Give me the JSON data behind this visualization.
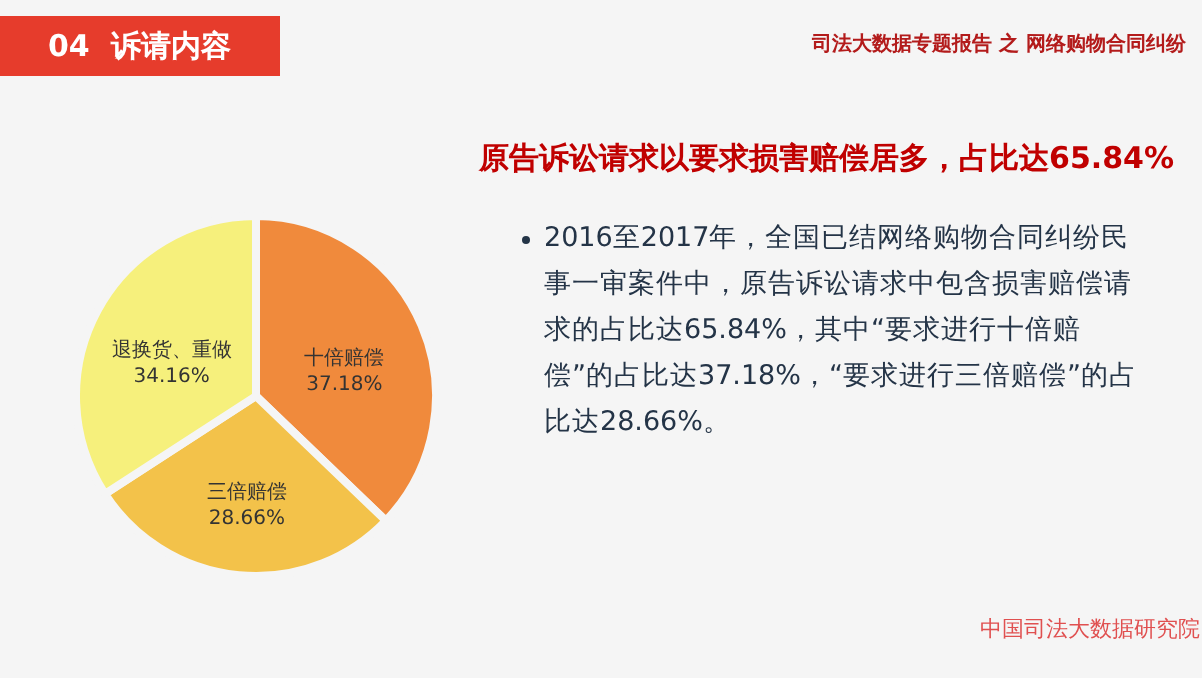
{
  "chart_data": {
    "type": "pie",
    "title": "原告诉讼请求以要求损害赔偿居多，占比达65.84%",
    "categories": [
      "十倍赔偿",
      "三倍赔偿",
      "退换货、重做"
    ],
    "values": [
      37.18,
      28.66,
      34.16
    ],
    "value_labels": [
      "37.18%",
      "28.66%",
      "34.16%"
    ],
    "colors": [
      "#f08a3c",
      "#f3c24a",
      "#f6f07c"
    ],
    "legend": false,
    "annotations": [
      "04  诉请内容",
      "司法大数据专题报告 之 网络购物合同纠纷",
      "2016至2017年，全国已结网络购物合同纠纷民事一审案件中，原告诉讼请求中包含损害赔偿请求的占比达65.84%，其中“要求进行十倍赔偿”的占比达37.18%，“要求进行三倍赔偿”的占比达28.66%。",
      "中国司法大数据研究院"
    ]
  }
}
